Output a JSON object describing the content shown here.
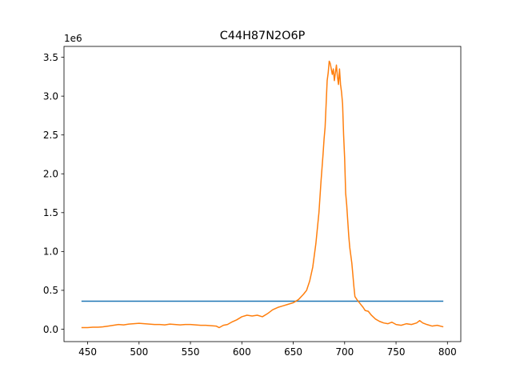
{
  "chart_data": {
    "type": "line",
    "title": "C44H87N2O6P",
    "xlabel": "",
    "ylabel": "",
    "y_offset_label": "1e6",
    "xlim": [
      427,
      813
    ],
    "ylim": [
      -0.16,
      3.64
    ],
    "x_ticks": [
      450,
      500,
      550,
      600,
      650,
      700,
      750,
      800
    ],
    "x_tick_labels": [
      "450",
      "500",
      "550",
      "600",
      "650",
      "700",
      "750",
      "800"
    ],
    "y_ticks": [
      0.0,
      0.5,
      1.0,
      1.5,
      2.0,
      2.5,
      3.0,
      3.5
    ],
    "y_tick_labels": [
      "0.0",
      "0.5",
      "1.0",
      "1.5",
      "2.0",
      "2.5",
      "3.0",
      "3.5"
    ],
    "grid": false,
    "series": [
      {
        "color": "#1f77b4",
        "x": [
          444,
          796
        ],
        "y": [
          0.36,
          0.36
        ]
      },
      {
        "color": "#ff7f0e",
        "x": [
          444,
          450,
          455,
          460,
          465,
          470,
          475,
          480,
          485,
          490,
          495,
          500,
          505,
          510,
          515,
          520,
          525,
          530,
          535,
          540,
          545,
          550,
          555,
          560,
          565,
          570,
          575,
          578,
          582,
          586,
          590,
          595,
          600,
          605,
          610,
          615,
          620,
          625,
          630,
          635,
          640,
          645,
          650,
          655,
          660,
          663,
          666,
          669,
          672,
          675,
          677,
          679,
          680,
          681,
          682,
          683,
          684,
          685,
          686,
          687,
          688,
          689,
          690,
          691,
          692,
          693,
          694,
          695,
          696,
          697,
          698,
          699,
          700,
          701,
          702,
          703,
          704,
          705,
          706,
          707,
          708,
          709,
          710,
          712,
          715,
          718,
          720,
          723,
          726,
          730,
          734,
          738,
          742,
          746,
          750,
          755,
          760,
          765,
          770,
          773,
          776,
          780,
          785,
          790,
          796
        ],
        "y": [
          0.02,
          0.02,
          0.025,
          0.025,
          0.03,
          0.04,
          0.05,
          0.06,
          0.055,
          0.065,
          0.07,
          0.075,
          0.07,
          0.065,
          0.06,
          0.06,
          0.055,
          0.065,
          0.06,
          0.055,
          0.06,
          0.06,
          0.055,
          0.05,
          0.05,
          0.045,
          0.04,
          0.02,
          0.05,
          0.06,
          0.09,
          0.12,
          0.16,
          0.18,
          0.17,
          0.18,
          0.16,
          0.2,
          0.25,
          0.28,
          0.3,
          0.32,
          0.34,
          0.38,
          0.45,
          0.5,
          0.62,
          0.8,
          1.1,
          1.5,
          1.9,
          2.25,
          2.45,
          2.6,
          2.9,
          3.2,
          3.3,
          3.45,
          3.42,
          3.35,
          3.28,
          3.35,
          3.2,
          3.3,
          3.4,
          3.25,
          3.15,
          3.35,
          3.15,
          3.05,
          2.9,
          2.5,
          2.2,
          1.75,
          1.6,
          1.4,
          1.2,
          1.05,
          0.95,
          0.85,
          0.7,
          0.55,
          0.42,
          0.38,
          0.33,
          0.28,
          0.24,
          0.23,
          0.18,
          0.13,
          0.1,
          0.08,
          0.07,
          0.09,
          0.06,
          0.05,
          0.07,
          0.06,
          0.08,
          0.11,
          0.08,
          0.06,
          0.04,
          0.05,
          0.03
        ]
      }
    ]
  }
}
